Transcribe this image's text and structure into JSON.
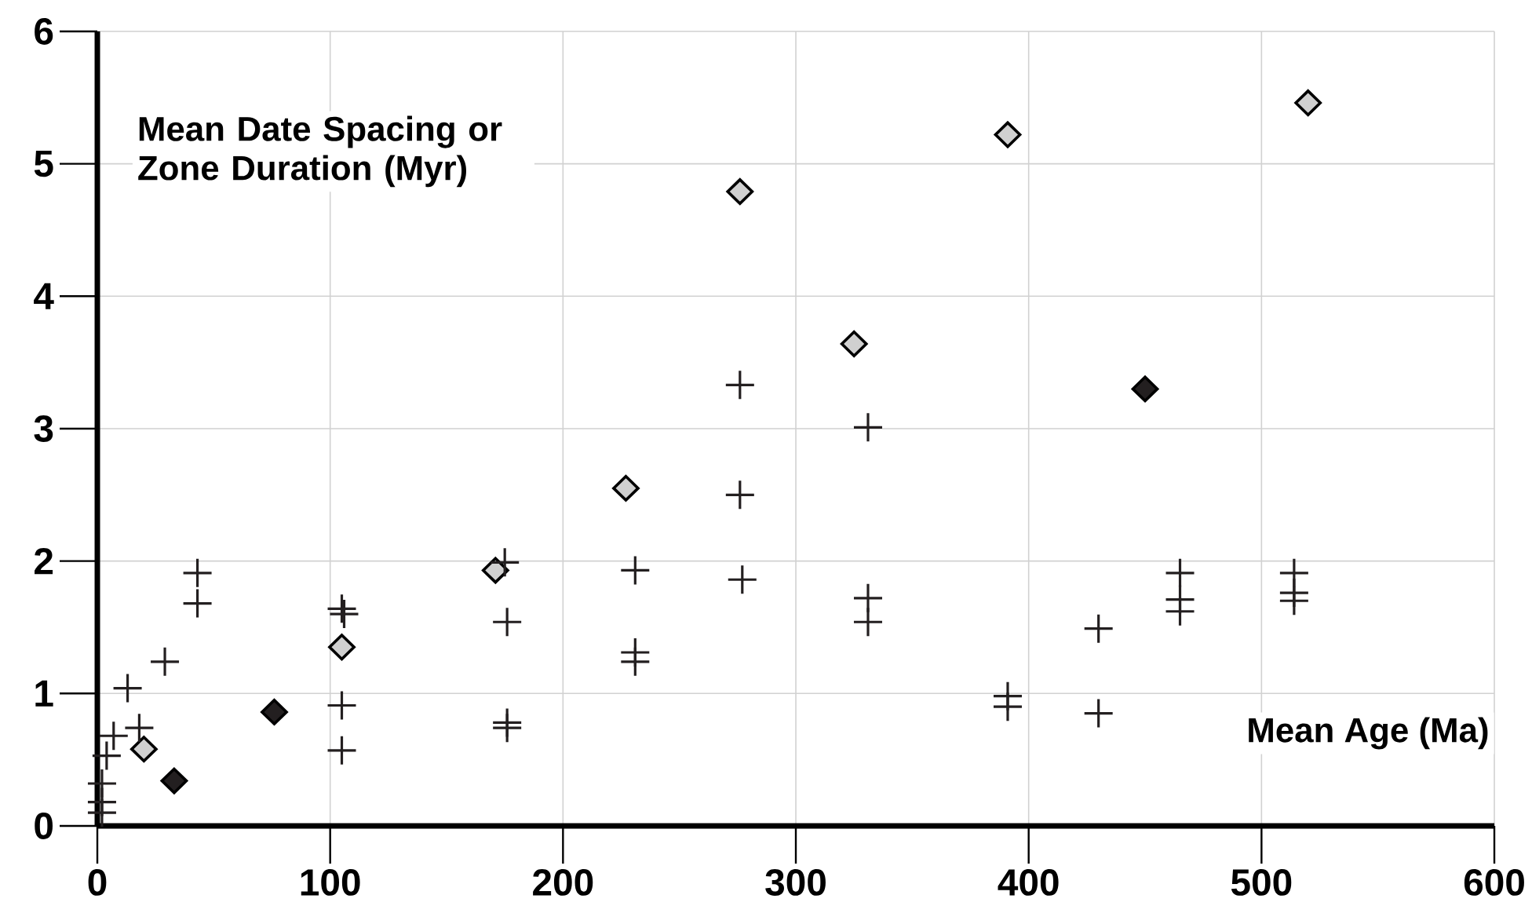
{
  "chart_data": {
    "type": "scatter",
    "xlabel": "Mean Age (Ma)",
    "ylabel": "Mean Date Spacing or Zone Duration (Myr)",
    "xlim": [
      0,
      600
    ],
    "ylim": [
      0,
      6
    ],
    "xticks": [
      0,
      100,
      200,
      300,
      400,
      500,
      600
    ],
    "yticks": [
      0,
      1,
      2,
      3,
      4,
      5,
      6
    ],
    "grid": true,
    "series": [
      {
        "color": "#d0d0d0",
        "marker": "diamond",
        "x": [
          20,
          105,
          171,
          227,
          276,
          325,
          391,
          520
        ],
        "values": [
          0.58,
          1.35,
          1.93,
          2.55,
          4.79,
          3.64,
          5.22,
          5.46
        ]
      },
      {
        "color": "#231f20",
        "marker": "diamond",
        "x": [
          33,
          76,
          450
        ],
        "values": [
          0.34,
          0.86,
          3.3
        ]
      },
      {
        "color": "#231f20",
        "marker": "cross",
        "x": [
          43,
          43,
          29,
          13,
          18,
          7,
          4,
          2,
          2,
          2,
          105,
          106,
          105,
          105,
          175,
          176,
          176,
          176,
          231,
          231,
          231,
          276,
          277,
          276,
          331,
          331,
          331,
          391,
          391,
          430,
          430,
          465,
          465,
          465,
          514,
          514,
          514
        ],
        "values": [
          1.91,
          1.68,
          1.24,
          1.04,
          0.74,
          0.68,
          0.53,
          0.32,
          0.18,
          0.1,
          1.64,
          1.6,
          0.91,
          0.57,
          1.99,
          1.54,
          0.78,
          0.74,
          1.93,
          1.31,
          1.24,
          2.5,
          1.86,
          3.33,
          3.01,
          1.72,
          1.54,
          0.98,
          0.9,
          1.49,
          0.85,
          1.91,
          1.71,
          1.62,
          1.91,
          1.76,
          1.7
        ]
      }
    ]
  }
}
